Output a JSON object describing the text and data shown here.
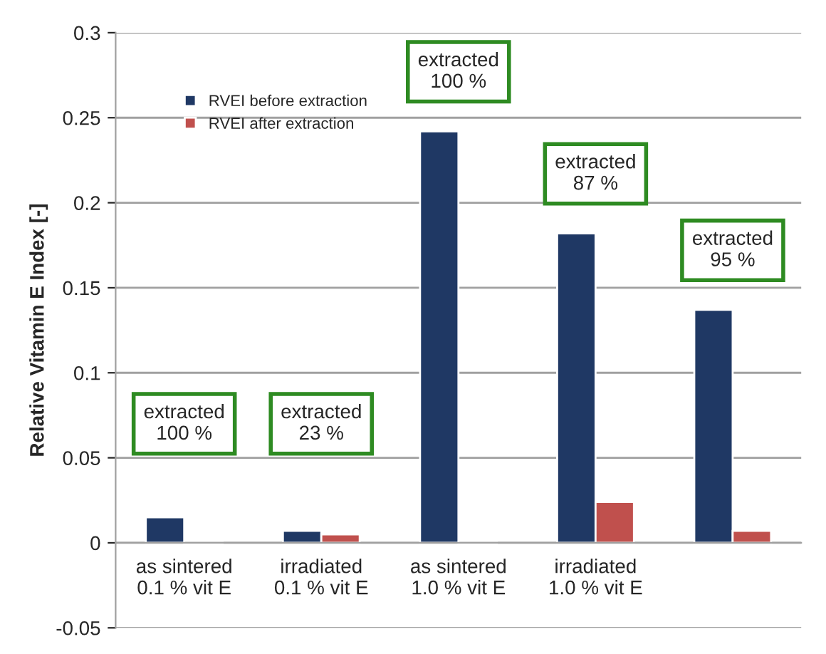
{
  "chart_data": {
    "type": "bar",
    "ylabel": "Relative Vitamin E Index [-]",
    "categories": [
      "as sintered\n0.1 % vit E",
      "irradiated\n0.1 % vit E",
      "as sintered\n1.0 % vit E",
      "irradiated\n1.0 % vit E",
      null
    ],
    "series": [
      {
        "name": "RVEI before extraction",
        "color": "#1f3864",
        "values": [
          0.015,
          0.007,
          0.242,
          0.182,
          0.137
        ]
      },
      {
        "name": "RVEI after extraction",
        "color": "#c0504d",
        "values": [
          -0.001,
          0.005,
          -0.001,
          0.024,
          0.007
        ]
      }
    ],
    "annotations": [
      "extracted\n100 %",
      "extracted\n23 %",
      "extracted\n100 %",
      "extracted\n87 %",
      "extracted\n95 %"
    ],
    "ylim": [
      -0.05,
      0.3
    ],
    "yticks": [
      -0.05,
      0,
      0.05,
      0.1,
      0.15,
      0.2,
      0.25,
      0.3
    ],
    "grid": "y",
    "legend": "top left"
  }
}
